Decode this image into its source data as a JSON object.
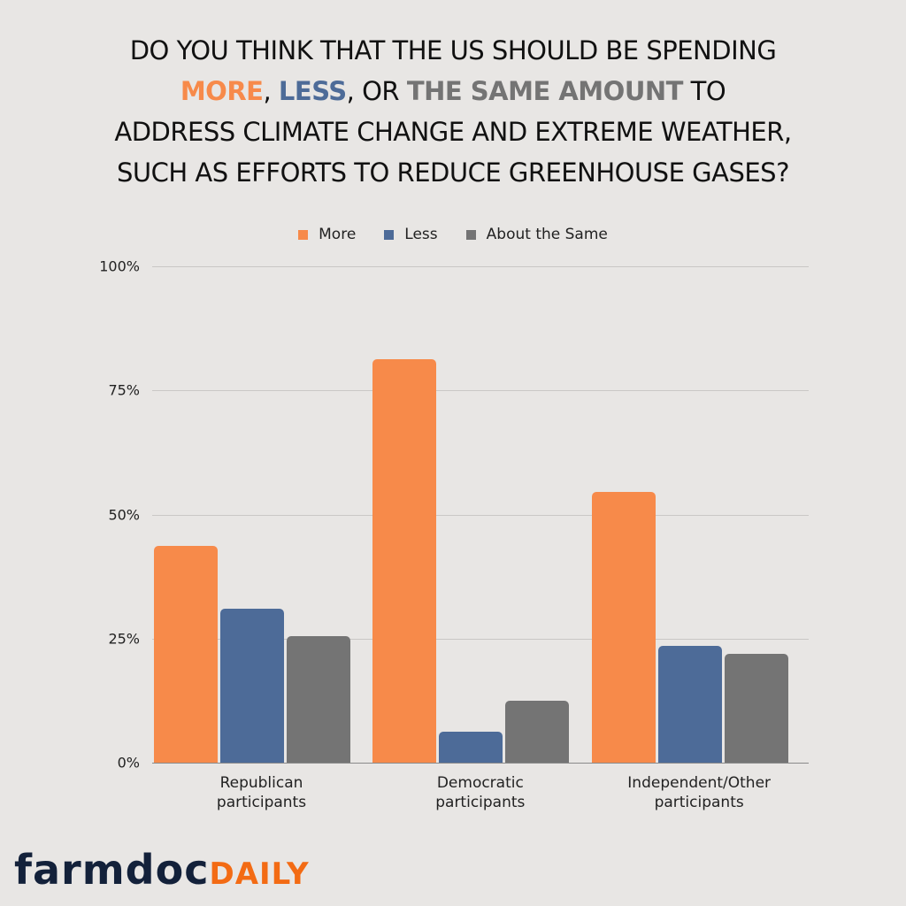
{
  "title": {
    "line1": "DO YOU THINK THAT THE US SHOULD BE SPENDING",
    "line2_more": "MORE",
    "line2_sep1": ", ",
    "line2_less": "LESS",
    "line2_sep2": ", OR ",
    "line2_same": "THE SAME AMOUNT",
    "line2_end": " TO",
    "line3": "ADDRESS CLIMATE CHANGE AND EXTREME WEATHER,",
    "line4": "SUCH AS EFFORTS TO REDUCE GREENHOUSE GASES?"
  },
  "legend": [
    {
      "label": "More",
      "color": "#f78a4a"
    },
    {
      "label": "Less",
      "color": "#4d6b98"
    },
    {
      "label": "About the Same",
      "color": "#747474"
    }
  ],
  "yticks": [
    "100%",
    "75%",
    "50%",
    "25%",
    "0%"
  ],
  "xlabels": [
    {
      "line1": "Republican",
      "line2": "participants"
    },
    {
      "line1": "Democratic",
      "line2": "participants"
    },
    {
      "line1": "Independent/Other",
      "line2": "participants"
    }
  ],
  "logo": {
    "part1": "farmdoc",
    "part2": "DAILY"
  },
  "chart_data": {
    "type": "bar",
    "title": "Do you think that the US should be spending more, less, or the same amount to address climate change and extreme weather, such as efforts to reduce greenhouse gases?",
    "categories": [
      "Republican participants",
      "Democratic participants",
      "Independent/Other participants"
    ],
    "series": [
      {
        "name": "More",
        "color": "#f78a4a",
        "values": [
          43.7,
          81.2,
          54.6
        ]
      },
      {
        "name": "Less",
        "color": "#4d6b98",
        "values": [
          31.0,
          6.3,
          23.5
        ]
      },
      {
        "name": "About the Same",
        "color": "#747474",
        "values": [
          25.5,
          12.5,
          21.9
        ]
      }
    ],
    "xlabel": "",
    "ylabel": "",
    "ylim": [
      0,
      100
    ],
    "yticks": [
      0,
      25,
      50,
      75,
      100
    ],
    "ytick_format": "percent",
    "grid": true,
    "legend_position": "top"
  }
}
